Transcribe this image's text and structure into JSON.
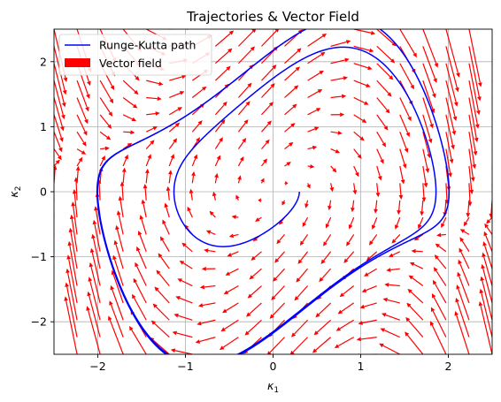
{
  "chart_data": {
    "type": "line",
    "title": "Trajectories & Vector Field",
    "xlabel": "κ",
    "xlabel_sub": "1",
    "ylabel": "κ",
    "ylabel_sub": "2",
    "xlim": [
      -2.5,
      2.5
    ],
    "ylim": [
      -2.5,
      2.5
    ],
    "xticks": [
      -2,
      -1,
      0,
      1,
      2
    ],
    "yticks": [
      -2,
      -1,
      0,
      1,
      2
    ],
    "grid": true,
    "legend": {
      "location": "upper-left",
      "entries": [
        {
          "label": "Runge-Kutta path",
          "kind": "line",
          "color": "#0000ff"
        },
        {
          "label": "Vector field",
          "kind": "patch",
          "color": "#ff0000"
        }
      ]
    },
    "series": [
      {
        "name": "Runge-Kutta path",
        "kind": "line",
        "color": "#0000ff",
        "system": "van-der-pol",
        "mu": 1.0,
        "initial_point": [
          0.3,
          0.0
        ],
        "t_end": 42,
        "step": 0.01
      },
      {
        "name": "Vector field",
        "kind": "quiver",
        "color": "#ff0000",
        "grid_x": {
          "start": -2.5,
          "stop": 2.5,
          "count": 20
        },
        "grid_y": {
          "start": -2.5,
          "stop": 2.5,
          "count": 20
        }
      }
    ]
  }
}
